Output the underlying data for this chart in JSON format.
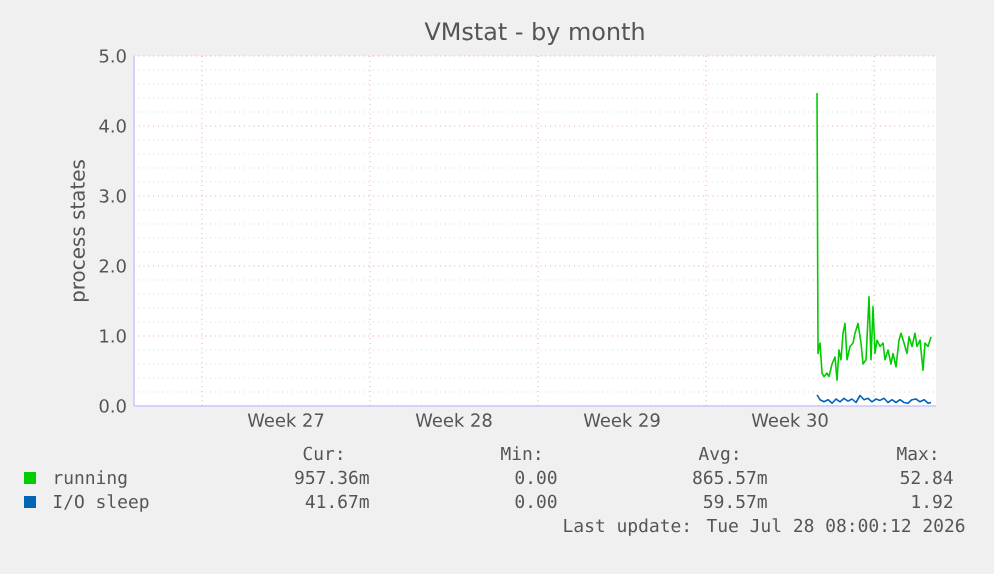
{
  "chart_data": {
    "type": "line",
    "title": "VMstat - by month",
    "ylabel": "process states",
    "xlim": [
      "2026-06-26T04:00",
      "2026-07-29T14:00"
    ],
    "ylim": [
      0,
      5
    ],
    "xticks": [
      {
        "value": "2026-06-29",
        "label": null
      },
      {
        "value": "2026-07-02T12:00",
        "label": "Week 27"
      },
      {
        "value": "2026-07-06",
        "label": null
      },
      {
        "value": "2026-07-09T12:00",
        "label": "Week 28"
      },
      {
        "value": "2026-07-13",
        "label": null
      },
      {
        "value": "2026-07-16T12:00",
        "label": "Week 29"
      },
      {
        "value": "2026-07-20",
        "label": null
      },
      {
        "value": "2026-07-23T12:00",
        "label": "Week 30"
      },
      {
        "value": "2026-07-27",
        "label": null
      }
    ],
    "yticks": [
      {
        "value": 0,
        "label": "0.0"
      },
      {
        "value": 1,
        "label": "1.0"
      },
      {
        "value": 2,
        "label": "2.0"
      },
      {
        "value": 3,
        "label": "3.0"
      },
      {
        "value": 4,
        "label": "4.0"
      },
      {
        "value": 5,
        "label": "5.0"
      }
    ],
    "grid": true,
    "legend": "bottom",
    "series": [
      {
        "name": "running",
        "color": "#00cc00",
        "x": [
          "2026-07-24T15:00",
          "2026-07-24T16:00",
          "2026-07-24T18:00",
          "2026-07-24T20:00",
          "2026-07-24T22:00",
          "2026-07-25T01:00",
          "2026-07-25T03:00",
          "2026-07-25T06:00",
          "2026-07-25T09:00",
          "2026-07-25T11:00",
          "2026-07-25T13:00",
          "2026-07-25T15:00",
          "2026-07-25T17:00",
          "2026-07-25T19:00",
          "2026-07-25T21:00",
          "2026-07-26T00:00",
          "2026-07-26T03:00",
          "2026-07-26T05:00",
          "2026-07-26T08:00",
          "2026-07-26T11:00",
          "2026-07-26T13:00",
          "2026-07-26T16:00",
          "2026-07-26T19:00",
          "2026-07-26T21:00",
          "2026-07-26T23:00",
          "2026-07-27T01:00",
          "2026-07-27T03:00",
          "2026-07-27T06:00",
          "2026-07-27T09:00",
          "2026-07-27T11:00",
          "2026-07-27T14:00",
          "2026-07-27T17:00",
          "2026-07-27T19:00",
          "2026-07-27T22:00",
          "2026-07-28T01:00",
          "2026-07-28T03:00",
          "2026-07-28T06:00",
          "2026-07-28T09:00",
          "2026-07-28T11:00",
          "2026-07-28T14:00",
          "2026-07-28T17:00",
          "2026-07-28T19:00",
          "2026-07-28T22:00",
          "2026-07-29T01:00",
          "2026-07-29T03:00",
          "2026-07-29T06:00",
          "2026-07-29T09:00"
        ],
        "values": [
          4.47,
          0.75,
          0.9,
          0.47,
          0.42,
          0.47,
          0.42,
          0.6,
          0.7,
          0.37,
          0.8,
          0.66,
          1.04,
          1.18,
          0.66,
          0.85,
          0.9,
          1.04,
          1.18,
          0.9,
          0.6,
          0.66,
          1.56,
          0.66,
          1.42,
          0.75,
          0.94,
          0.85,
          0.9,
          0.66,
          0.8,
          0.6,
          0.75,
          0.56,
          0.94,
          1.04,
          0.9,
          0.75,
          0.99,
          0.85,
          1.04,
          0.85,
          0.94,
          0.51,
          0.9,
          0.85,
          0.99
        ]
      },
      {
        "name": "I/O sleep",
        "color": "#0066b3",
        "x": [
          "2026-07-24T15:00",
          "2026-07-24T18:00",
          "2026-07-24T22:00",
          "2026-07-25T02:00",
          "2026-07-25T06:00",
          "2026-07-25T10:00",
          "2026-07-25T14:00",
          "2026-07-25T18:00",
          "2026-07-25T22:00",
          "2026-07-26T02:00",
          "2026-07-26T06:00",
          "2026-07-26T10:00",
          "2026-07-26T14:00",
          "2026-07-26T18:00",
          "2026-07-26T22:00",
          "2026-07-27T02:00",
          "2026-07-27T06:00",
          "2026-07-27T10:00",
          "2026-07-27T14:00",
          "2026-07-27T18:00",
          "2026-07-27T22:00",
          "2026-07-28T02:00",
          "2026-07-28T06:00",
          "2026-07-28T10:00",
          "2026-07-28T14:00",
          "2026-07-28T18:00",
          "2026-07-28T22:00",
          "2026-07-29T02:00",
          "2026-07-29T06:00",
          "2026-07-29T09:00"
        ],
        "values": [
          0.16,
          0.09,
          0.06,
          0.09,
          0.04,
          0.1,
          0.06,
          0.11,
          0.07,
          0.1,
          0.05,
          0.15,
          0.09,
          0.11,
          0.06,
          0.1,
          0.08,
          0.11,
          0.05,
          0.09,
          0.05,
          0.09,
          0.05,
          0.04,
          0.09,
          0.1,
          0.06,
          0.09,
          0.04,
          0.05
        ]
      }
    ],
    "annotations": [
      "Cur:",
      "Min:",
      "Avg:",
      "Max:",
      "957.36m",
      "0.00",
      "865.57m",
      "52.84",
      "41.67m",
      "0.00",
      "59.57m",
      "1.92",
      "Last update: Tue Jul 28 08:00:12 2026"
    ]
  }
}
